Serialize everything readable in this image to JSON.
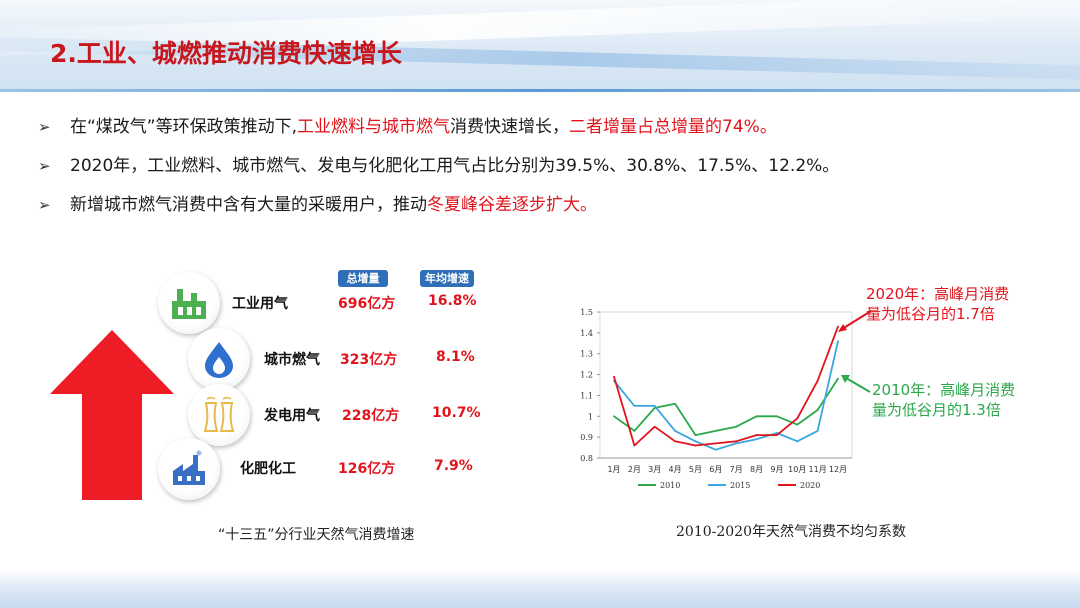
{
  "title": "2.工业、城燃推动消费快速增长",
  "bullets": [
    {
      "parts": [
        {
          "text": "在“煤改气”等环保政策推动下,",
          "hl": false
        },
        {
          "text": "工业燃料与城市燃气",
          "hl": true
        },
        {
          "text": "消费快速增长，",
          "hl": false
        },
        {
          "text": "二者增量占总增量的74%。",
          "hl": true
        }
      ]
    },
    {
      "parts": [
        {
          "text": "2020年，工业燃料、城市燃气、发电与化肥化工用气占比分别为39.5%、30.8%、17.5%、12.2%。",
          "hl": false
        }
      ]
    },
    {
      "parts": [
        {
          "text": "新增城市燃气消费中含有大量的采暖用户，推动",
          "hl": false
        },
        {
          "text": "冬夏峰谷差逐步扩大。",
          "hl": true
        }
      ]
    }
  ],
  "left_panel": {
    "header_total": "总增量",
    "header_rate": "年均增速",
    "rows": [
      {
        "name": "工业用气",
        "total": "696亿方",
        "rate": "16.8%",
        "icon": "factory-icon"
      },
      {
        "name": "城市燃气",
        "total": "323亿方",
        "rate": "8.1%",
        "icon": "gas-flame-icon"
      },
      {
        "name": "发电用气",
        "total": "228亿方",
        "rate": "10.7%",
        "icon": "power-plant-icon"
      },
      {
        "name": "化肥化工",
        "total": "126亿方",
        "rate": "7.9%",
        "icon": "chemical-plant-icon"
      }
    ],
    "caption": "“十三五”分行业天然气消费增速",
    "arrow_color": "#ee1c25"
  },
  "chart_caption": "2010-2020年天然气消费不均匀系数",
  "annotations": {
    "a2020": [
      "2020年：高峰月消费",
      "量为低谷月的1.7倍"
    ],
    "a2010": [
      "2010年：高峰月消费",
      "量为低谷月的1.3倍"
    ]
  },
  "chart_data": {
    "type": "line",
    "categories": [
      "1月",
      "2月",
      "3月",
      "4月",
      "5月",
      "6月",
      "7月",
      "8月",
      "9月",
      "10月",
      "11月",
      "12月"
    ],
    "ylim": [
      0.8,
      1.5
    ],
    "yticks": [
      "0.8",
      "0.9",
      "1",
      "1.1",
      "1.2",
      "1.3",
      "1.4",
      "1.5"
    ],
    "series": [
      {
        "name": "2010",
        "color": "#2aa84a",
        "values": [
          1.0,
          0.93,
          1.04,
          1.06,
          0.91,
          0.93,
          0.95,
          1.0,
          1.0,
          0.96,
          1.03,
          1.18
        ]
      },
      {
        "name": "2015",
        "color": "#3aa6dd",
        "values": [
          1.17,
          1.05,
          1.05,
          0.93,
          0.88,
          0.84,
          0.87,
          0.89,
          0.92,
          0.88,
          0.93,
          1.36
        ]
      },
      {
        "name": "2020",
        "color": "#e0141c",
        "values": [
          1.19,
          0.86,
          0.95,
          0.88,
          0.86,
          0.87,
          0.88,
          0.91,
          0.91,
          0.99,
          1.17,
          1.43
        ]
      }
    ]
  }
}
